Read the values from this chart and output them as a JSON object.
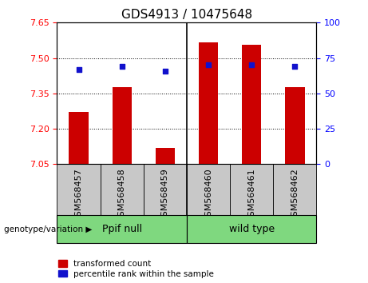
{
  "title": "GDS4913 / 10475648",
  "samples": [
    "GSM568457",
    "GSM568458",
    "GSM568459",
    "GSM568460",
    "GSM568461",
    "GSM568462"
  ],
  "transformed_counts": [
    7.27,
    7.375,
    7.12,
    7.565,
    7.555,
    7.375
  ],
  "percentile_ranks": [
    67,
    69,
    66,
    70,
    70,
    69
  ],
  "y_min": 7.05,
  "y_max": 7.65,
  "y_ticks": [
    7.05,
    7.2,
    7.35,
    7.5,
    7.65
  ],
  "y2_ticks": [
    0,
    25,
    50,
    75,
    100
  ],
  "bar_color": "#cc0000",
  "dot_color": "#1111cc",
  "groups": [
    {
      "label": "Ppif null",
      "start": 0,
      "end": 2
    },
    {
      "label": "wild type",
      "start": 3,
      "end": 5
    }
  ],
  "group_color": "#7FD87F",
  "sample_box_color": "#c8c8c8",
  "group_label_text": "genotype/variation",
  "legend_bar_label": "transformed count",
  "legend_dot_label": "percentile rank within the sample",
  "title_fontsize": 11,
  "tick_fontsize": 8,
  "bar_width": 0.45
}
